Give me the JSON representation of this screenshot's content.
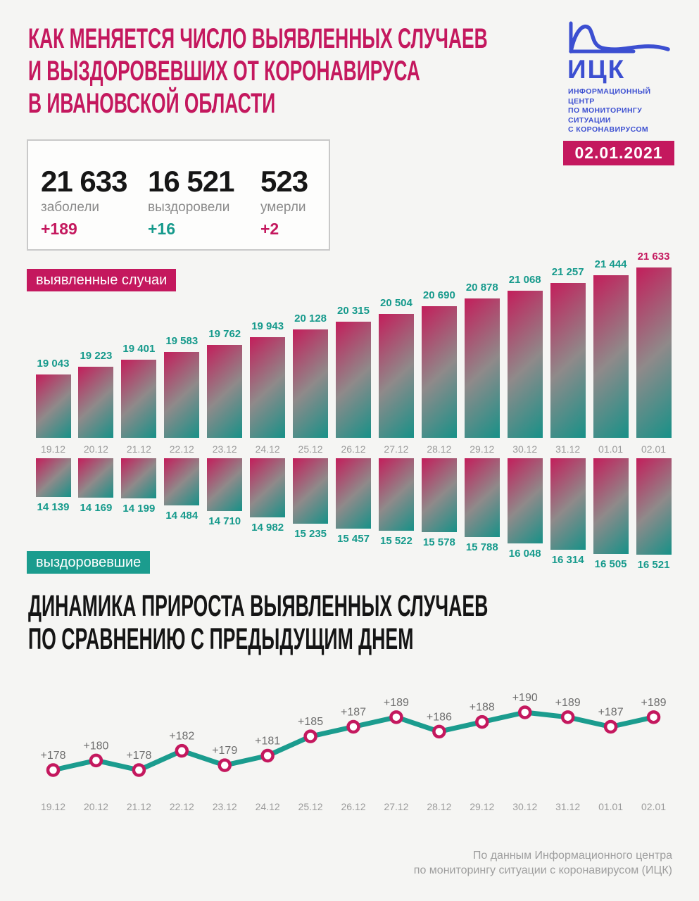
{
  "header": {
    "title_lines": [
      "КАК МЕНЯЕТСЯ ЧИСЛО ВЫЯВЛЕННЫХ СЛУЧАЕВ",
      "И ВЫЗДОРОВЕВШИХ ОТ КОРОНАВИРУСА",
      "В ИВАНОВСКОЙ ОБЛАСТИ"
    ],
    "logo": {
      "abbr": "ИЦК",
      "org_lines": [
        "ИНФОРМАЦИОННЫЙ ЦЕНТР",
        "ПО МОНИТОРИНГУ СИТУАЦИИ",
        "С КОРОНАВИРУСОМ"
      ],
      "date_badge": "02.01.2021"
    }
  },
  "summary": {
    "cases": {
      "value": "21 633",
      "label": "заболели",
      "delta": "+189"
    },
    "recovered": {
      "value": "16 521",
      "label": "выздоровели",
      "delta": "+16"
    },
    "deaths": {
      "value": "523",
      "label": "умерли",
      "delta": "+2"
    }
  },
  "colors": {
    "crimson": "#c4185e",
    "teal": "#1b9c8e",
    "teal_text": "#169a8c",
    "blue": "#3c4fd1",
    "grey_date": "#9b9b9b",
    "grey_point_label": "#6d6d6d",
    "bar_gradient": [
      "#c31e5b",
      "#8f8a8a",
      "#179188"
    ]
  },
  "chart_data": [
    {
      "type": "bar",
      "title": "выявленные случаи",
      "categories": [
        "19.12",
        "20.12",
        "21.12",
        "22.12",
        "23.12",
        "24.12",
        "25.12",
        "26.12",
        "27.12",
        "28.12",
        "29.12",
        "30.12",
        "31.12",
        "01.01",
        "02.01"
      ],
      "values": [
        19043,
        19223,
        19401,
        19583,
        19762,
        19943,
        20128,
        20315,
        20504,
        20690,
        20878,
        21068,
        21257,
        21444,
        21633
      ],
      "labels": [
        "19 043",
        "19 223",
        "19 401",
        "19 583",
        "19 762",
        "19 943",
        "20 128",
        "20 315",
        "20 504",
        "20 690",
        "20 878",
        "21 068",
        "21 257",
        "21 444",
        "21 633"
      ],
      "highlight_last_label": true,
      "bar_style": "diagonal gradient crimson to teal",
      "baseline": "bottom",
      "grid": false,
      "legend_position": "badge-top-left"
    },
    {
      "type": "bar",
      "title": "выздоровевшие",
      "categories": [
        "19.12",
        "20.12",
        "21.12",
        "22.12",
        "23.12",
        "24.12",
        "25.12",
        "26.12",
        "27.12",
        "28.12",
        "29.12",
        "30.12",
        "31.12",
        "01.01",
        "02.01"
      ],
      "values": [
        14139,
        14169,
        14199,
        14484,
        14710,
        14982,
        15235,
        15457,
        15522,
        15578,
        15788,
        16048,
        16314,
        16505,
        16521
      ],
      "labels": [
        "14 139",
        "14 169",
        "14 199",
        "14 484",
        "14 710",
        "14 982",
        "15 235",
        "15 457",
        "15 522",
        "15 578",
        "15 788",
        "16 048",
        "16 314",
        "16 505",
        "16 521"
      ],
      "orientation": "hanging",
      "bar_style": "diagonal gradient crimson to teal",
      "grid": false,
      "legend_position": "badge-bottom-left"
    },
    {
      "type": "line",
      "title": "ДИНАМИКА ПРИРОСТА ВЫЯВЛЕННЫХ СЛУЧАЕВ ПО СРАВНЕНИЮ С ПРЕДЫДУЩИМ ДНЕМ",
      "title_lines": [
        "ДИНАМИКА ПРИРОСТА ВЫЯВЛЕННЫХ СЛУЧАЕВ",
        "ПО СРАВНЕНИЮ С ПРЕДЫДУЩИМ ДНЕМ"
      ],
      "categories": [
        "19.12",
        "20.12",
        "21.12",
        "22.12",
        "23.12",
        "24.12",
        "25.12",
        "26.12",
        "27.12",
        "28.12",
        "29.12",
        "30.12",
        "31.12",
        "01.01",
        "02.01"
      ],
      "values": [
        178,
        180,
        178,
        182,
        179,
        181,
        185,
        187,
        189,
        186,
        188,
        190,
        189,
        187,
        189
      ],
      "labels": [
        "+178",
        "+180",
        "+178",
        "+182",
        "+179",
        "+181",
        "+185",
        "+187",
        "+189",
        "+186",
        "+188",
        "+190",
        "+189",
        "+187",
        "+189"
      ],
      "ylim": [
        176,
        192
      ],
      "grid": false,
      "legend_position": "none",
      "marker": "open-circle-crimson",
      "line_color": "teal"
    }
  ],
  "footer": {
    "lines": [
      "По данным Информационного центра",
      "по мониторингу ситуации с коронавирусом (ИЦК)"
    ]
  }
}
